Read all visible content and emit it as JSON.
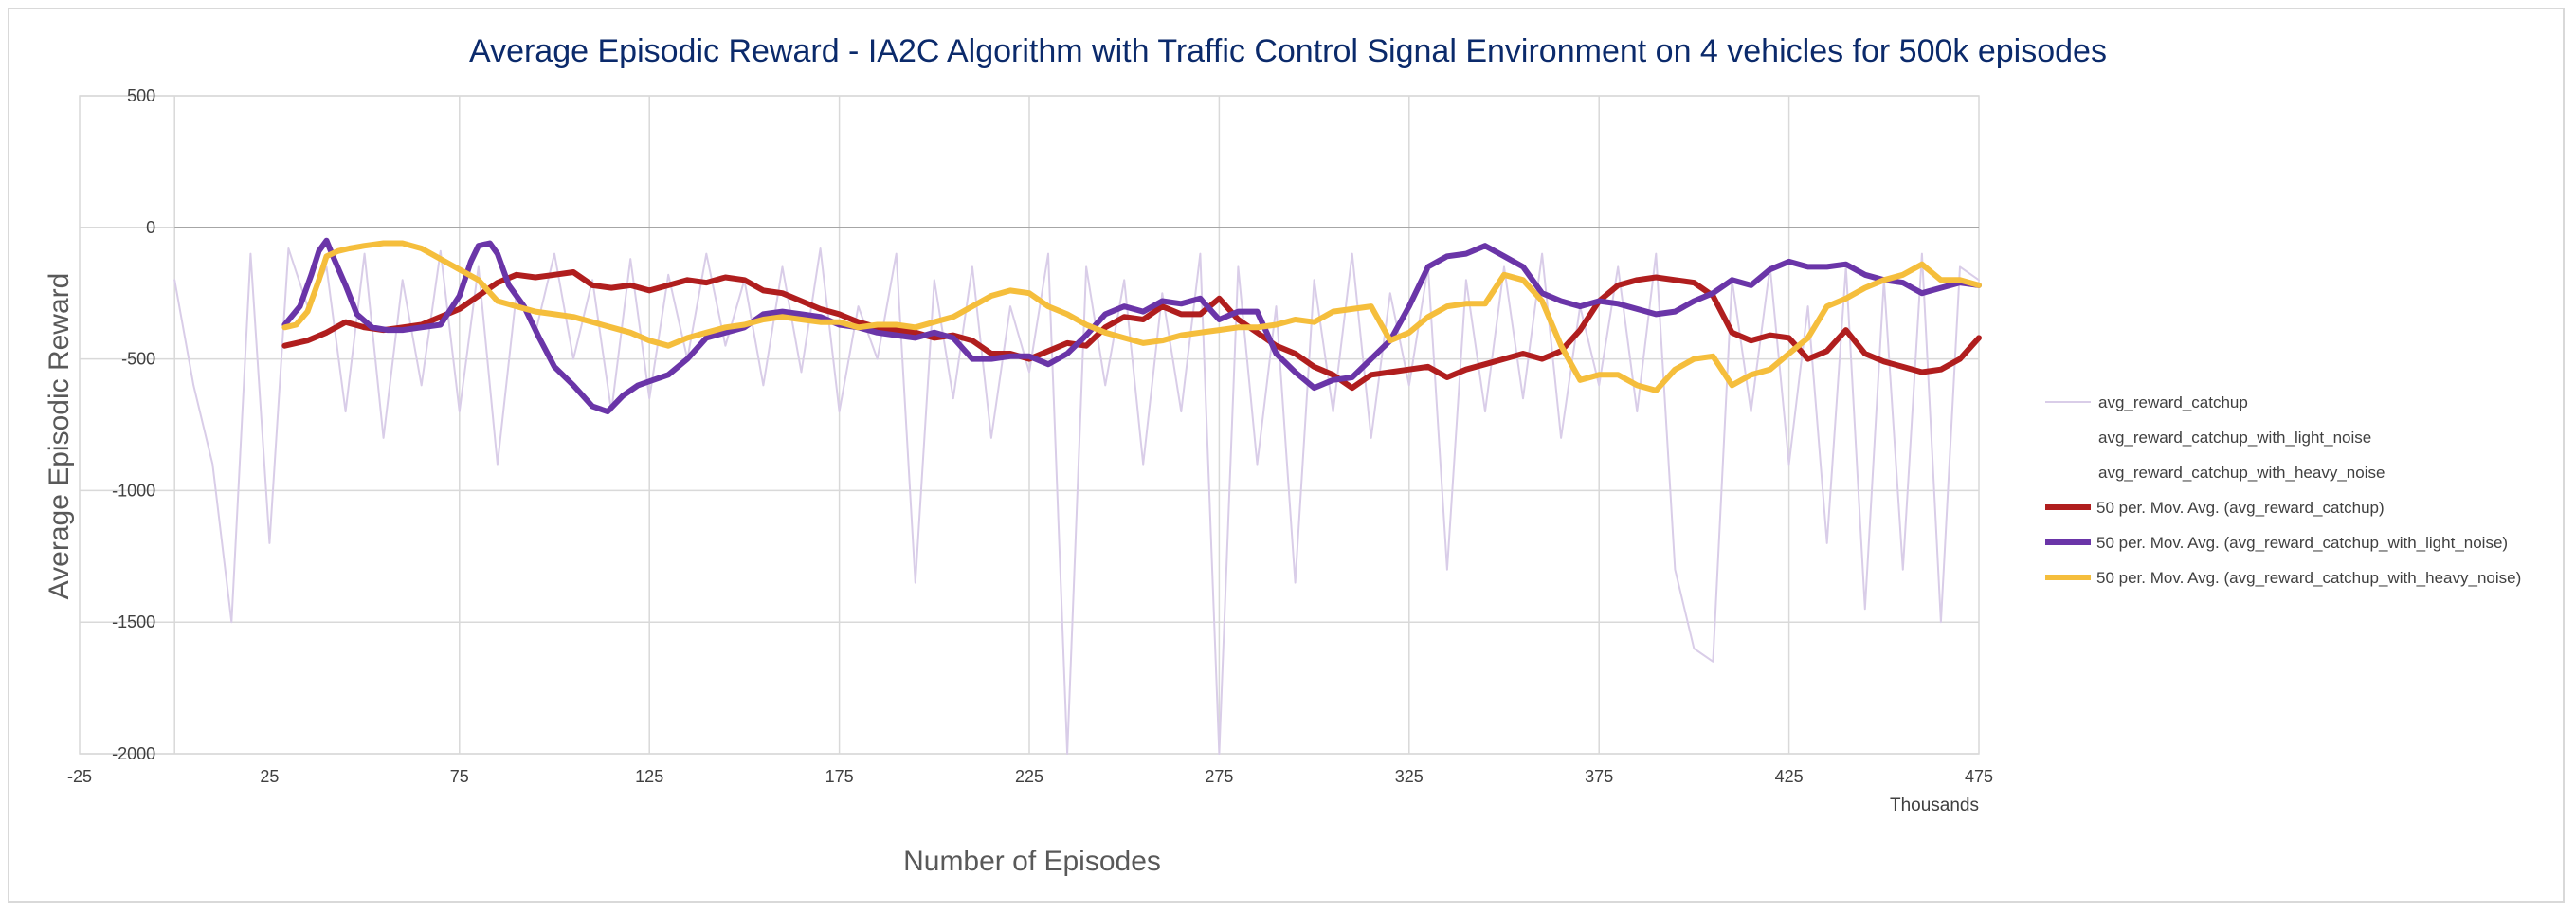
{
  "chart_data": {
    "type": "line",
    "title": "Average Episodic Reward - IA2C Algorithm with Traffic Control Signal Environment on 4 vehicles for 500k episodes",
    "xlabel": "Number of Episodes",
    "ylabel": "Average Episodic Reward",
    "x_units_label": "Thousands",
    "xlim": [
      -25,
      475
    ],
    "ylim": [
      -2000,
      500
    ],
    "x_ticks": [
      -25,
      25,
      75,
      125,
      175,
      225,
      275,
      325,
      375,
      425,
      475
    ],
    "y_ticks": [
      500,
      0,
      -500,
      -1000,
      -1500,
      -2000
    ],
    "x_gridlines": [
      0,
      75,
      125,
      175,
      225,
      275,
      325,
      375,
      425
    ],
    "grid": true,
    "legend_position": "right",
    "series": [
      {
        "name": "avg_reward_catchup",
        "color": "#d9cde8",
        "style": "thin",
        "x": [
          0,
          5,
          10,
          15,
          20,
          25,
          30,
          35,
          40,
          45,
          50,
          55,
          60,
          65,
          70,
          75,
          80,
          85,
          90,
          95,
          100,
          105,
          110,
          115,
          120,
          125,
          130,
          135,
          140,
          145,
          150,
          155,
          160,
          165,
          170,
          175,
          180,
          185,
          190,
          195,
          200,
          205,
          210,
          215,
          220,
          225,
          230,
          235,
          240,
          245,
          250,
          255,
          260,
          265,
          270,
          275,
          280,
          285,
          290,
          295,
          300,
          305,
          310,
          315,
          320,
          325,
          330,
          335,
          340,
          345,
          350,
          355,
          360,
          365,
          370,
          375,
          380,
          385,
          390,
          395,
          400,
          405,
          410,
          415,
          420,
          425,
          430,
          435,
          440,
          445,
          450,
          455,
          460,
          465,
          470,
          475
        ],
        "values": [
          -200,
          -600,
          -900,
          -1500,
          -100,
          -1200,
          -80,
          -300,
          -150,
          -700,
          -100,
          -800,
          -200,
          -600,
          -90,
          -700,
          -150,
          -900,
          -250,
          -400,
          -100,
          -500,
          -200,
          -700,
          -120,
          -650,
          -180,
          -500,
          -100,
          -450,
          -200,
          -600,
          -150,
          -550,
          -80,
          -700,
          -300,
          -500,
          -100,
          -1350,
          -200,
          -650,
          -150,
          -800,
          -300,
          -550,
          -100,
          -2000,
          -150,
          -600,
          -200,
          -900,
          -250,
          -700,
          -100,
          -2000,
          -150,
          -900,
          -300,
          -1350,
          -200,
          -700,
          -100,
          -800,
          -250,
          -600,
          -150,
          -1300,
          -200,
          -700,
          -150,
          -650,
          -100,
          -800,
          -300,
          -600,
          -150,
          -700,
          -100,
          -1300,
          -1600,
          -1650,
          -200,
          -700,
          -150,
          -900,
          -300,
          -1200,
          -150,
          -1450,
          -200,
          -1300,
          -100,
          -1500,
          -150,
          -200
        ]
      },
      {
        "name": "avg_reward_catchup_with_light_noise",
        "color": "#a9a9a9",
        "style": "hidden",
        "x": [],
        "values": []
      },
      {
        "name": "avg_reward_catchup_with_heavy_noise",
        "color": "#a9a9a9",
        "style": "hidden",
        "x": [],
        "values": []
      },
      {
        "name": "50 per. Mov. Avg. (avg_reward_catchup)",
        "color": "#b01e1e",
        "style": "thick",
        "x": [
          29,
          35,
          40,
          45,
          50,
          55,
          60,
          65,
          70,
          75,
          80,
          85,
          90,
          95,
          100,
          105,
          110,
          115,
          120,
          125,
          130,
          135,
          140,
          145,
          150,
          155,
          160,
          165,
          170,
          175,
          180,
          185,
          190,
          195,
          200,
          205,
          210,
          215,
          220,
          225,
          230,
          235,
          240,
          245,
          250,
          255,
          260,
          265,
          270,
          275,
          280,
          285,
          290,
          295,
          300,
          305,
          310,
          315,
          320,
          325,
          330,
          335,
          340,
          345,
          350,
          355,
          360,
          365,
          370,
          375,
          380,
          385,
          390,
          395,
          400,
          405,
          410,
          415,
          420,
          425,
          430,
          435,
          440,
          445,
          450,
          455,
          460,
          465,
          470,
          475
        ],
        "values": [
          -450,
          -430,
          -400,
          -360,
          -380,
          -390,
          -380,
          -370,
          -340,
          -310,
          -260,
          -210,
          -180,
          -190,
          -180,
          -170,
          -220,
          -230,
          -220,
          -240,
          -220,
          -200,
          -210,
          -190,
          -200,
          -240,
          -250,
          -280,
          -310,
          -330,
          -360,
          -380,
          -390,
          -400,
          -420,
          -410,
          -430,
          -480,
          -480,
          -500,
          -470,
          -440,
          -450,
          -380,
          -340,
          -350,
          -300,
          -330,
          -330,
          -270,
          -350,
          -400,
          -450,
          -480,
          -530,
          -560,
          -610,
          -560,
          -550,
          -540,
          -530,
          -570,
          -540,
          -520,
          -500,
          -480,
          -500,
          -470,
          -390,
          -280,
          -220,
          -200,
          -190,
          -200,
          -210,
          -260,
          -400,
          -430,
          -410,
          -420,
          -500,
          -470,
          -390,
          -480,
          -510,
          -530,
          -550,
          -540,
          -500,
          -420
        ]
      },
      {
        "name": "50 per. Mov. Avg. (avg_reward_catchup_with_light_noise)",
        "color": "#6a35a8",
        "style": "thick",
        "x": [
          29,
          33,
          36,
          38,
          40,
          42,
          45,
          48,
          52,
          56,
          60,
          65,
          70,
          75,
          78,
          80,
          83,
          85,
          88,
          92,
          96,
          100,
          105,
          110,
          114,
          118,
          122,
          126,
          130,
          135,
          140,
          145,
          150,
          155,
          160,
          165,
          170,
          175,
          180,
          185,
          190,
          195,
          200,
          205,
          210,
          215,
          220,
          225,
          230,
          235,
          240,
          245,
          250,
          255,
          260,
          265,
          270,
          275,
          280,
          285,
          290,
          295,
          300,
          305,
          310,
          315,
          320,
          325,
          330,
          335,
          340,
          345,
          350,
          355,
          360,
          365,
          370,
          375,
          380,
          385,
          390,
          395,
          400,
          405,
          410,
          415,
          420,
          425,
          430,
          435,
          440,
          445,
          450,
          455,
          460,
          465,
          470,
          475
        ],
        "values": [
          -370,
          -300,
          -180,
          -90,
          -50,
          -120,
          -220,
          -330,
          -380,
          -390,
          -390,
          -380,
          -370,
          -260,
          -130,
          -70,
          -60,
          -100,
          -220,
          -300,
          -420,
          -530,
          -600,
          -680,
          -700,
          -640,
          -600,
          -580,
          -560,
          -500,
          -420,
          -400,
          -380,
          -330,
          -320,
          -330,
          -340,
          -370,
          -380,
          -400,
          -410,
          -420,
          -400,
          -420,
          -500,
          -500,
          -490,
          -490,
          -520,
          -480,
          -410,
          -330,
          -300,
          -320,
          -280,
          -290,
          -270,
          -350,
          -320,
          -320,
          -480,
          -550,
          -610,
          -580,
          -570,
          -500,
          -430,
          -300,
          -150,
          -110,
          -100,
          -70,
          -110,
          -150,
          -250,
          -280,
          -300,
          -280,
          -290,
          -310,
          -330,
          -320,
          -280,
          -250,
          -200,
          -220,
          -160,
          -130,
          -150,
          -150,
          -140,
          -180,
          -200,
          -210,
          -250,
          -230,
          -210,
          -220
        ]
      },
      {
        "name": "50 per. Mov. Avg. (avg_reward_catchup_with_heavy_noise)",
        "color": "#f5be3c",
        "style": "thick",
        "x": [
          29,
          32,
          35,
          38,
          40,
          43,
          46,
          50,
          55,
          60,
          65,
          70,
          75,
          80,
          85,
          90,
          95,
          100,
          105,
          110,
          115,
          120,
          125,
          130,
          135,
          140,
          145,
          150,
          155,
          160,
          165,
          170,
          175,
          180,
          185,
          190,
          195,
          200,
          205,
          210,
          215,
          220,
          225,
          230,
          235,
          240,
          245,
          250,
          255,
          260,
          265,
          270,
          275,
          280,
          285,
          290,
          295,
          300,
          305,
          310,
          315,
          320,
          325,
          330,
          335,
          340,
          345,
          350,
          355,
          360,
          365,
          370,
          375,
          380,
          385,
          390,
          395,
          400,
          405,
          410,
          415,
          420,
          425,
          430,
          435,
          440,
          445,
          450,
          455,
          460,
          465,
          470,
          475
        ],
        "values": [
          -380,
          -370,
          -320,
          -200,
          -110,
          -90,
          -80,
          -70,
          -60,
          -60,
          -80,
          -120,
          -160,
          -200,
          -280,
          -300,
          -320,
          -330,
          -340,
          -360,
          -380,
          -400,
          -430,
          -450,
          -420,
          -400,
          -380,
          -370,
          -350,
          -340,
          -350,
          -360,
          -360,
          -380,
          -370,
          -370,
          -380,
          -360,
          -340,
          -300,
          -260,
          -240,
          -250,
          -300,
          -330,
          -370,
          -400,
          -420,
          -440,
          -430,
          -410,
          -400,
          -390,
          -380,
          -380,
          -370,
          -350,
          -360,
          -320,
          -310,
          -300,
          -430,
          -400,
          -340,
          -300,
          -290,
          -290,
          -180,
          -200,
          -280,
          -450,
          -580,
          -560,
          -560,
          -600,
          -620,
          -540,
          -500,
          -490,
          -600,
          -560,
          -540,
          -480,
          -420,
          -300,
          -270,
          -230,
          -200,
          -180,
          -140,
          -200,
          -200,
          -220
        ]
      }
    ]
  }
}
